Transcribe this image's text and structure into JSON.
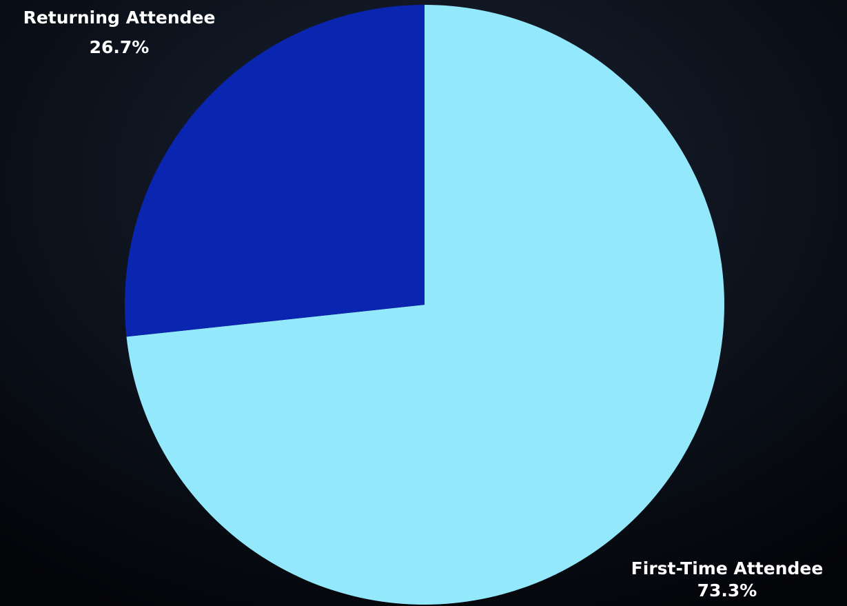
{
  "chart_data": {
    "type": "pie",
    "categories": [
      "First-Time Attendee",
      "Returning Attendee"
    ],
    "values": [
      73.3,
      26.7
    ],
    "value_labels": [
      "73.3%",
      "26.7%"
    ],
    "colors": [
      "#94e8fc",
      "#0a25b0"
    ],
    "start_angle": 0,
    "direction": "clockwise"
  }
}
